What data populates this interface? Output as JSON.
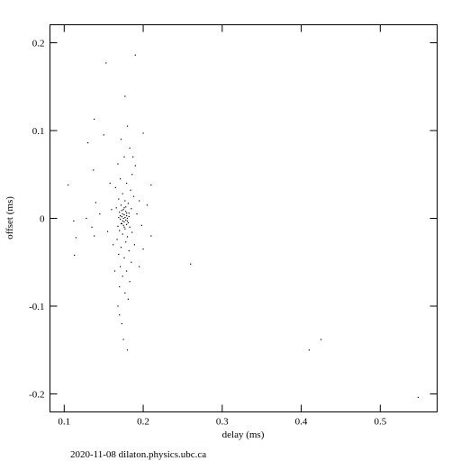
{
  "chart_data": {
    "type": "scatter",
    "xlabel": "delay (ms)",
    "ylabel": "offset (ms)",
    "footer": "2020-11-08  dilaton.physics.ubc.ca",
    "color": "#000000",
    "xlim": [
      0.082,
      0.572
    ],
    "ylim": [
      -0.2205,
      0.2205
    ],
    "xticks": [
      0.1,
      0.2,
      0.3,
      0.4,
      0.5
    ],
    "yticks": [
      -0.2,
      -0.1,
      0,
      0.1,
      0.2
    ],
    "x": [
      0.153,
      0.19,
      0.177,
      0.138,
      0.18,
      0.13,
      0.2,
      0.105,
      0.112,
      0.115,
      0.113,
      0.128,
      0.135,
      0.138,
      0.14,
      0.137,
      0.26,
      0.41,
      0.425,
      0.548,
      0.175,
      0.18,
      0.17,
      0.168,
      0.21,
      0.21,
      0.205,
      0.195,
      0.19,
      0.172,
      0.183,
      0.176,
      0.168,
      0.186,
      0.171,
      0.179,
      0.165,
      0.184,
      0.174,
      0.188,
      0.169,
      0.177,
      0.181,
      0.172,
      0.166,
      0.185,
      0.175,
      0.178,
      0.17,
      0.182,
      0.174,
      0.176,
      0.179,
      0.173,
      0.177,
      0.175,
      0.18,
      0.171,
      0.178,
      0.174,
      0.176,
      0.181,
      0.172,
      0.179,
      0.175,
      0.168,
      0.183,
      0.177,
      0.17,
      0.186,
      0.174,
      0.18,
      0.167,
      0.178,
      0.189,
      0.172,
      0.182,
      0.169,
      0.176,
      0.185,
      0.171,
      0.179,
      0.174,
      0.183,
      0.17,
      0.177,
      0.181,
      0.173,
      0.176,
      0.173,
      0.178,
      0.171,
      0.18,
      0.176,
      0.173,
      0.179,
      0.169,
      0.182,
      0.15,
      0.16,
      0.162,
      0.158,
      0.195,
      0.198,
      0.192,
      0.164,
      0.155,
      0.145,
      0.2,
      0.187
    ],
    "y": [
      0.177,
      0.186,
      0.139,
      0.113,
      0.105,
      0.086,
      0.097,
      0.038,
      -0.003,
      -0.022,
      -0.042,
      0,
      -0.01,
      -0.02,
      0.018,
      0.055,
      -0.052,
      -0.15,
      -0.138,
      -0.204,
      -0.138,
      -0.15,
      -0.11,
      -0.1,
      -0.02,
      0.038,
      0.015,
      -0.055,
      0.06,
      0.09,
      0.08,
      0.07,
      0.062,
      0.05,
      0.045,
      0.04,
      0.035,
      0.032,
      0.028,
      0.025,
      0.022,
      0.02,
      0.017,
      0.015,
      0.012,
      0.011,
      0.01,
      0.008,
      0.007,
      0.006,
      0.005,
      0.004,
      0.003,
      0.002,
      0.001,
      0,
      0,
      -0.001,
      -0.002,
      -0.003,
      -0.004,
      -0.005,
      -0.006,
      -0.007,
      -0.008,
      -0.009,
      -0.01,
      -0.012,
      -0.014,
      -0.016,
      -0.018,
      -0.021,
      -0.024,
      -0.027,
      -0.03,
      -0.033,
      -0.037,
      -0.041,
      -0.045,
      -0.05,
      -0.055,
      -0.06,
      -0.066,
      -0.072,
      -0.078,
      -0.085,
      -0.092,
      -0.12,
      0.012,
      0.009,
      0.013,
      0.003,
      -0.003,
      -0.01,
      -0.006,
      0.006,
      0.001,
      0.002,
      0.095,
      0.01,
      -0.03,
      0.04,
      0.02,
      -0.008,
      0.005,
      -0.06,
      -0.015,
      0.005,
      -0.035,
      0.07
    ]
  }
}
